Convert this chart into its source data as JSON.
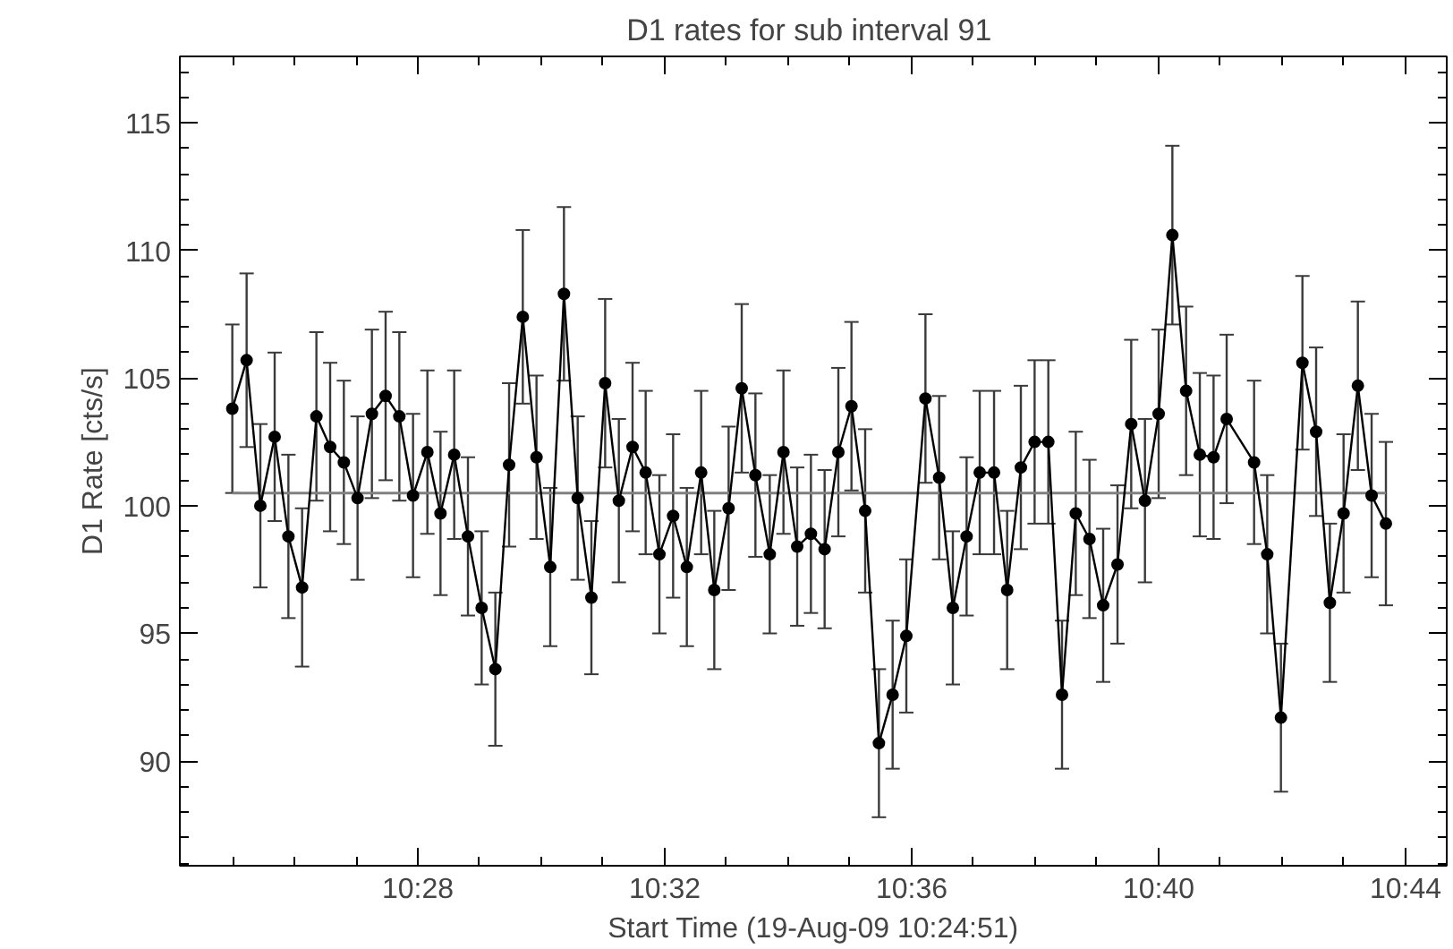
{
  "chart_data": {
    "type": "line",
    "title": "D1 rates for sub interval  91",
    "xlabel": "Start Time (19-Aug-09 10:24:51)",
    "ylabel": "D1 Rate [cts/s]",
    "x": [
      10.41659,
      10.42045,
      10.42416,
      10.42802,
      10.43173,
      10.43543,
      10.43929,
      10.443,
      10.4467,
      10.4504,
      10.45427,
      10.45797,
      10.46168,
      10.46538,
      10.46925,
      10.47279,
      10.47649,
      10.4802,
      10.4839,
      10.4876,
      10.49131,
      10.49501,
      10.49871,
      10.50242,
      10.50612,
      10.50983,
      10.51353,
      10.51724,
      10.52094,
      10.52464,
      10.52818,
      10.53189,
      10.53559,
      10.53929,
      10.54316,
      10.5467,
      10.55057,
      10.55411,
      10.55781,
      10.56168,
      10.56538,
      10.56909,
      10.57279,
      10.57649,
      10.5802,
      10.58374,
      10.58744,
      10.59115,
      10.59485,
      10.59855,
      10.60371,
      10.60741,
      10.61111,
      10.61482,
      10.61836,
      10.62223,
      10.62577,
      10.62947,
      10.63318,
      10.63688,
      10.64058,
      10.64429,
      10.64799,
      10.65169,
      10.65556,
      10.65926,
      10.66297,
      10.66667,
      10.67037,
      10.67408,
      10.67778,
      10.68149,
      10.68503,
      10.69243,
      10.69598,
      10.69968,
      10.70548,
      10.70918,
      10.71289,
      10.71659,
      10.72045,
      10.72416,
      10.72802
    ],
    "series": [
      {
        "color": "#000000",
        "values": [
          103.8,
          105.7,
          100.0,
          102.7,
          98.8,
          96.8,
          103.5,
          102.3,
          101.7,
          100.3,
          103.6,
          104.3,
          103.5,
          100.4,
          102.1,
          99.7,
          102.0,
          98.8,
          96.0,
          93.6,
          101.6,
          107.4,
          101.9,
          97.6,
          108.3,
          100.3,
          96.4,
          104.8,
          100.2,
          102.3,
          101.3,
          98.1,
          99.6,
          97.6,
          101.3,
          96.7,
          99.9,
          104.6,
          101.2,
          98.1,
          102.1,
          98.4,
          98.9,
          98.3,
          102.1,
          103.9,
          99.8,
          90.7,
          92.6,
          94.9,
          104.2,
          101.1,
          96.0,
          98.8,
          101.3,
          101.3,
          96.7,
          101.5,
          102.5,
          102.5,
          92.6,
          99.7,
          98.7,
          96.1,
          97.7,
          103.2,
          100.2,
          103.6,
          110.6,
          104.5,
          102.0,
          101.9,
          103.4,
          101.7,
          98.1,
          91.7,
          105.6,
          102.9,
          96.2,
          99.7,
          104.7,
          100.4,
          99.3
        ],
        "errors": [
          3.3,
          3.4,
          3.2,
          3.3,
          3.2,
          3.1,
          3.3,
          3.3,
          3.2,
          3.2,
          3.3,
          3.3,
          3.3,
          3.2,
          3.2,
          3.2,
          3.3,
          3.1,
          3.0,
          3.0,
          3.2,
          3.4,
          3.2,
          3.1,
          3.4,
          3.2,
          3.0,
          3.3,
          3.2,
          3.3,
          3.2,
          3.1,
          3.2,
          3.1,
          3.2,
          3.1,
          3.2,
          3.3,
          3.2,
          3.1,
          3.2,
          3.1,
          3.1,
          3.1,
          3.3,
          3.3,
          3.2,
          2.9,
          2.9,
          3.0,
          3.3,
          3.2,
          3.0,
          3.1,
          3.2,
          3.2,
          3.1,
          3.2,
          3.2,
          3.2,
          2.9,
          3.2,
          3.1,
          3.0,
          3.1,
          3.3,
          3.2,
          3.3,
          3.5,
          3.3,
          3.2,
          3.2,
          3.3,
          3.2,
          3.1,
          2.9,
          3.4,
          3.3,
          3.1,
          3.1,
          3.3,
          3.2,
          3.2
        ]
      }
    ],
    "marker": "circle",
    "line_style": "solid",
    "xlim": [
      10.40242,
      10.74444
    ],
    "ylim": [
      85.9,
      117.6
    ],
    "xticks": [
      {
        "value": 10.46667,
        "label": "10:28"
      },
      {
        "value": 10.53333,
        "label": "10:32"
      },
      {
        "value": 10.6,
        "label": "10:36"
      },
      {
        "value": 10.66667,
        "label": "10:40"
      },
      {
        "value": 10.73333,
        "label": "10:44"
      }
    ],
    "yticks": [
      90,
      95,
      100,
      105,
      110,
      115
    ],
    "ref_lines": [
      {
        "axis": "y",
        "value": 100.5,
        "label": null,
        "color": "#808080"
      }
    ]
  }
}
